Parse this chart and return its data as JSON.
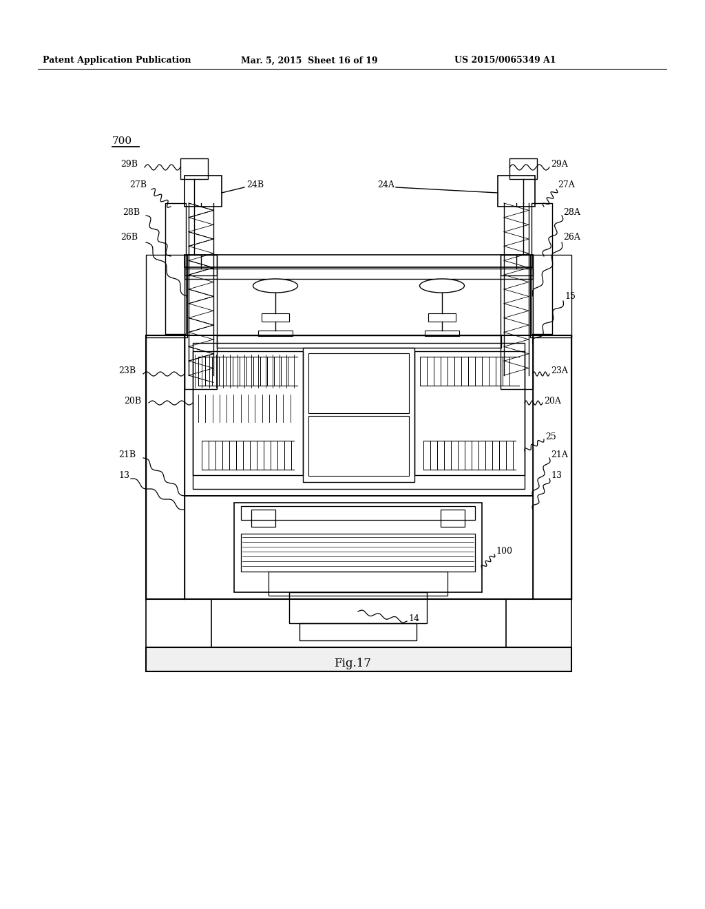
{
  "bg_color": "#ffffff",
  "line_color": "#000000",
  "header_left": "Patent Application Publication",
  "header_mid": "Mar. 5, 2015  Sheet 16 of 19",
  "header_right": "US 2015/0065349 A1",
  "caption": "Fig.17",
  "fig_width": 10.24,
  "fig_height": 13.2,
  "dpi": 100
}
